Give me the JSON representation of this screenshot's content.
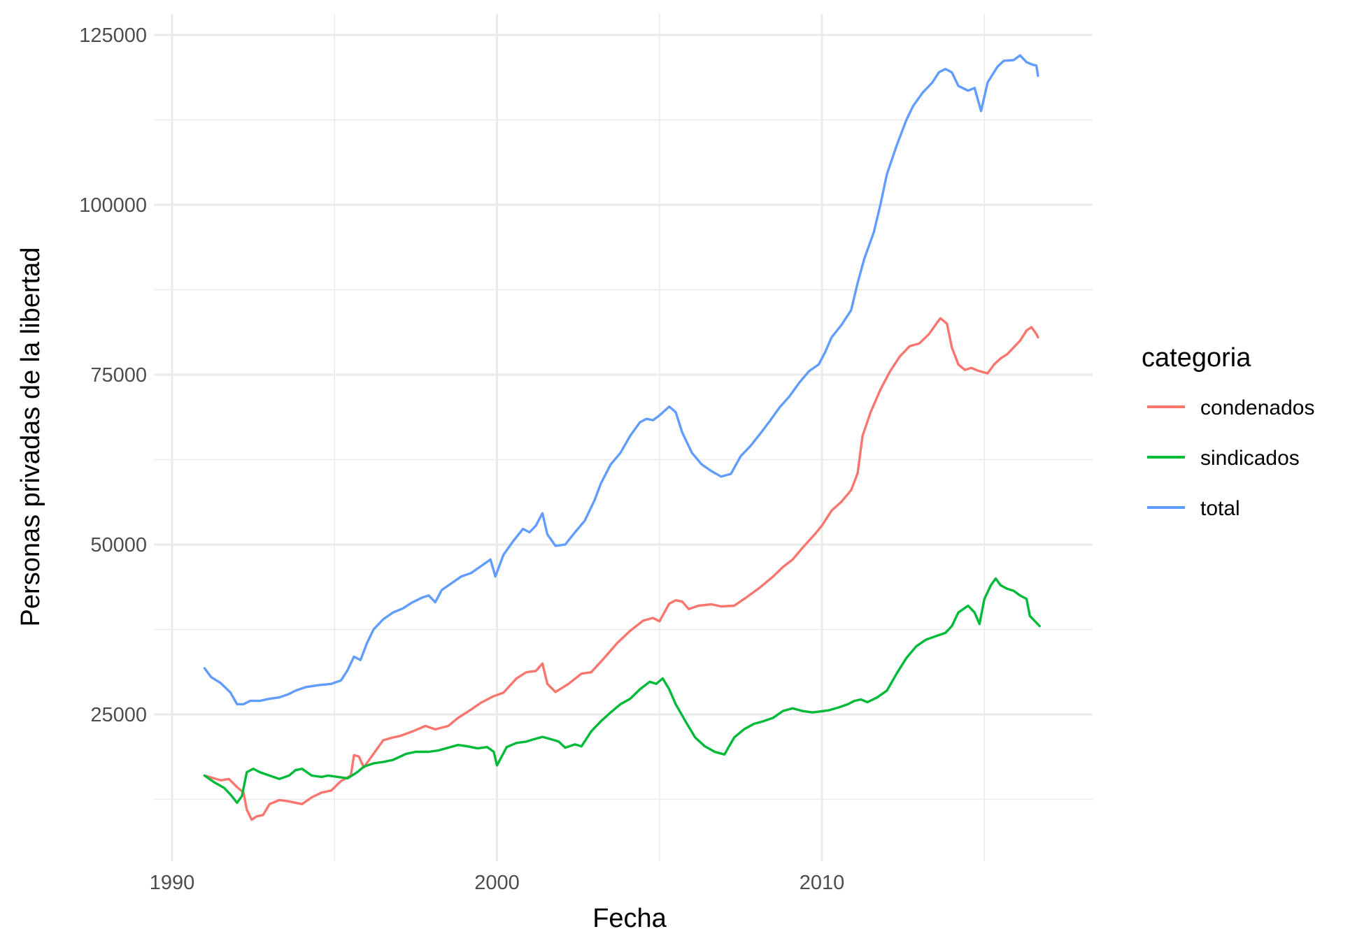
{
  "chart_data": {
    "type": "line",
    "title": "",
    "xlabel": "Fecha",
    "ylabel": "Personas privadas de la libertad",
    "xlim": [
      1990,
      2017
    ],
    "ylim": [
      0,
      125000
    ],
    "x_ticks": [
      1990,
      2000,
      2010
    ],
    "x_tick_labels": [
      "1990",
      "2000",
      "2010"
    ],
    "y_ticks": [
      25000,
      50000,
      75000,
      100000,
      125000
    ],
    "y_tick_labels": [
      "25000",
      "50000",
      "75000",
      "100000",
      "125000"
    ],
    "grid": true,
    "legend": {
      "title": "categoria",
      "position": "right"
    },
    "series": [
      {
        "name": "condenados",
        "color": "#F8766D",
        "points": [
          [
            1991.0,
            16000
          ],
          [
            1991.5,
            15300
          ],
          [
            1991.75,
            15500
          ],
          [
            1992.0,
            14300
          ],
          [
            1992.2,
            13500
          ],
          [
            1992.3,
            11000
          ],
          [
            1992.45,
            9500
          ],
          [
            1992.6,
            10000
          ],
          [
            1992.8,
            10200
          ],
          [
            1993.0,
            11800
          ],
          [
            1993.3,
            12400
          ],
          [
            1993.6,
            12200
          ],
          [
            1994.0,
            11800
          ],
          [
            1994.3,
            12800
          ],
          [
            1994.6,
            13500
          ],
          [
            1994.9,
            13800
          ],
          [
            1995.2,
            15200
          ],
          [
            1995.5,
            16000
          ],
          [
            1995.6,
            19000
          ],
          [
            1995.75,
            18800
          ],
          [
            1995.9,
            17200
          ],
          [
            1996.2,
            19200
          ],
          [
            1996.5,
            21200
          ],
          [
            1996.8,
            21600
          ],
          [
            1997.0,
            21800
          ],
          [
            1997.4,
            22500
          ],
          [
            1997.8,
            23300
          ],
          [
            1998.1,
            22800
          ],
          [
            1998.5,
            23300
          ],
          [
            1998.8,
            24500
          ],
          [
            1999.2,
            25700
          ],
          [
            1999.5,
            26700
          ],
          [
            1999.9,
            27700
          ],
          [
            2000.2,
            28200
          ],
          [
            2000.6,
            30300
          ],
          [
            2000.9,
            31200
          ],
          [
            2001.2,
            31400
          ],
          [
            2001.4,
            32500
          ],
          [
            2001.55,
            29500
          ],
          [
            2001.8,
            28300
          ],
          [
            2002.2,
            29500
          ],
          [
            2002.6,
            31000
          ],
          [
            2002.9,
            31200
          ],
          [
            2003.3,
            33300
          ],
          [
            2003.7,
            35500
          ],
          [
            2004.1,
            37300
          ],
          [
            2004.5,
            38800
          ],
          [
            2004.8,
            39200
          ],
          [
            2005.0,
            38700
          ],
          [
            2005.3,
            41300
          ],
          [
            2005.5,
            41800
          ],
          [
            2005.7,
            41600
          ],
          [
            2005.9,
            40500
          ],
          [
            2006.2,
            41000
          ],
          [
            2006.6,
            41200
          ],
          [
            2006.9,
            40900
          ],
          [
            2007.3,
            41000
          ],
          [
            2007.7,
            42300
          ],
          [
            2008.1,
            43700
          ],
          [
            2008.5,
            45300
          ],
          [
            2008.8,
            46700
          ],
          [
            2009.1,
            47800
          ],
          [
            2009.4,
            49500
          ],
          [
            2009.8,
            51600
          ],
          [
            2010.0,
            52800
          ],
          [
            2010.3,
            55000
          ],
          [
            2010.6,
            56300
          ],
          [
            2010.9,
            58000
          ],
          [
            2011.1,
            60500
          ],
          [
            2011.25,
            66000
          ],
          [
            2011.5,
            69500
          ],
          [
            2011.8,
            72800
          ],
          [
            2012.1,
            75500
          ],
          [
            2012.4,
            77700
          ],
          [
            2012.7,
            79200
          ],
          [
            2013.0,
            79600
          ],
          [
            2013.3,
            81000
          ],
          [
            2013.55,
            82700
          ],
          [
            2013.65,
            83300
          ],
          [
            2013.85,
            82500
          ],
          [
            2014.0,
            79000
          ],
          [
            2014.2,
            76500
          ],
          [
            2014.4,
            75700
          ],
          [
            2014.6,
            76000
          ],
          [
            2014.8,
            75600
          ],
          [
            2015.1,
            75200
          ],
          [
            2015.3,
            76500
          ],
          [
            2015.5,
            77400
          ],
          [
            2015.7,
            78000
          ],
          [
            2015.9,
            79000
          ],
          [
            2016.1,
            80000
          ],
          [
            2016.3,
            81500
          ],
          [
            2016.45,
            82000
          ],
          [
            2016.6,
            81000
          ],
          [
            2016.65,
            80500
          ]
        ]
      },
      {
        "name": "sindicados",
        "color": "#00BA38",
        "points": [
          [
            1991.0,
            16000
          ],
          [
            1991.3,
            15000
          ],
          [
            1991.6,
            14200
          ],
          [
            1991.8,
            13200
          ],
          [
            1992.0,
            12000
          ],
          [
            1992.15,
            13000
          ],
          [
            1992.3,
            16500
          ],
          [
            1992.5,
            17000
          ],
          [
            1992.7,
            16500
          ],
          [
            1993.0,
            16000
          ],
          [
            1993.3,
            15500
          ],
          [
            1993.6,
            16000
          ],
          [
            1993.8,
            16800
          ],
          [
            1994.0,
            17000
          ],
          [
            1994.3,
            16000
          ],
          [
            1994.6,
            15800
          ],
          [
            1994.8,
            16000
          ],
          [
            1995.1,
            15800
          ],
          [
            1995.4,
            15600
          ],
          [
            1995.7,
            16500
          ],
          [
            1995.9,
            17300
          ],
          [
            1996.2,
            17800
          ],
          [
            1996.5,
            18000
          ],
          [
            1996.8,
            18300
          ],
          [
            1997.2,
            19200
          ],
          [
            1997.5,
            19500
          ],
          [
            1997.9,
            19500
          ],
          [
            1998.2,
            19700
          ],
          [
            1998.5,
            20100
          ],
          [
            1998.8,
            20500
          ],
          [
            1999.1,
            20300
          ],
          [
            1999.4,
            20000
          ],
          [
            1999.7,
            20200
          ],
          [
            1999.9,
            19500
          ],
          [
            2000.0,
            17500
          ],
          [
            2000.3,
            20200
          ],
          [
            2000.6,
            20800
          ],
          [
            2000.9,
            21000
          ],
          [
            2001.1,
            21300
          ],
          [
            2001.4,
            21700
          ],
          [
            2001.7,
            21300
          ],
          [
            2001.9,
            21000
          ],
          [
            2002.1,
            20100
          ],
          [
            2002.4,
            20600
          ],
          [
            2002.6,
            20300
          ],
          [
            2002.9,
            22500
          ],
          [
            2003.2,
            24000
          ],
          [
            2003.5,
            25300
          ],
          [
            2003.8,
            26500
          ],
          [
            2004.1,
            27300
          ],
          [
            2004.4,
            28700
          ],
          [
            2004.7,
            29800
          ],
          [
            2004.9,
            29500
          ],
          [
            2005.1,
            30300
          ],
          [
            2005.3,
            28700
          ],
          [
            2005.5,
            26500
          ],
          [
            2005.8,
            24000
          ],
          [
            2006.1,
            21600
          ],
          [
            2006.4,
            20300
          ],
          [
            2006.7,
            19500
          ],
          [
            2007.0,
            19100
          ],
          [
            2007.3,
            21600
          ],
          [
            2007.6,
            22800
          ],
          [
            2007.9,
            23600
          ],
          [
            2008.2,
            24000
          ],
          [
            2008.5,
            24500
          ],
          [
            2008.8,
            25500
          ],
          [
            2009.1,
            25900
          ],
          [
            2009.4,
            25500
          ],
          [
            2009.7,
            25300
          ],
          [
            2009.9,
            25400
          ],
          [
            2010.2,
            25600
          ],
          [
            2010.5,
            26000
          ],
          [
            2010.8,
            26500
          ],
          [
            2011.0,
            27000
          ],
          [
            2011.2,
            27200
          ],
          [
            2011.4,
            26800
          ],
          [
            2011.7,
            27500
          ],
          [
            2012.0,
            28500
          ],
          [
            2012.3,
            31000
          ],
          [
            2012.6,
            33300
          ],
          [
            2012.9,
            35000
          ],
          [
            2013.2,
            36000
          ],
          [
            2013.5,
            36500
          ],
          [
            2013.8,
            37000
          ],
          [
            2014.0,
            38000
          ],
          [
            2014.2,
            40000
          ],
          [
            2014.5,
            41000
          ],
          [
            2014.7,
            40000
          ],
          [
            2014.85,
            38300
          ],
          [
            2015.0,
            42000
          ],
          [
            2015.2,
            44000
          ],
          [
            2015.35,
            45000
          ],
          [
            2015.5,
            44000
          ],
          [
            2015.7,
            43500
          ],
          [
            2015.9,
            43200
          ],
          [
            2016.1,
            42500
          ],
          [
            2016.3,
            42000
          ],
          [
            2016.4,
            39500
          ],
          [
            2016.6,
            38500
          ],
          [
            2016.7,
            38000
          ]
        ]
      },
      {
        "name": "total",
        "color": "#619CFF",
        "points": [
          [
            1991.0,
            31800
          ],
          [
            1991.2,
            30500
          ],
          [
            1991.5,
            29600
          ],
          [
            1991.8,
            28200
          ],
          [
            1992.0,
            26500
          ],
          [
            1992.2,
            26500
          ],
          [
            1992.4,
            27000
          ],
          [
            1992.7,
            27000
          ],
          [
            1993.0,
            27300
          ],
          [
            1993.3,
            27500
          ],
          [
            1993.6,
            28000
          ],
          [
            1993.8,
            28500
          ],
          [
            1994.1,
            29000
          ],
          [
            1994.5,
            29300
          ],
          [
            1994.9,
            29500
          ],
          [
            1995.2,
            30000
          ],
          [
            1995.4,
            31500
          ],
          [
            1995.6,
            33500
          ],
          [
            1995.8,
            33000
          ],
          [
            1996.0,
            35500
          ],
          [
            1996.2,
            37500
          ],
          [
            1996.5,
            39000
          ],
          [
            1996.8,
            40000
          ],
          [
            1997.1,
            40600
          ],
          [
            1997.4,
            41500
          ],
          [
            1997.7,
            42200
          ],
          [
            1997.9,
            42500
          ],
          [
            1998.1,
            41500
          ],
          [
            1998.3,
            43300
          ],
          [
            1998.6,
            44300
          ],
          [
            1998.9,
            45300
          ],
          [
            1999.2,
            45800
          ],
          [
            1999.5,
            46800
          ],
          [
            1999.8,
            47800
          ],
          [
            1999.95,
            45300
          ],
          [
            2000.2,
            48500
          ],
          [
            2000.5,
            50500
          ],
          [
            2000.8,
            52300
          ],
          [
            2001.0,
            51800
          ],
          [
            2001.2,
            52800
          ],
          [
            2001.4,
            54600
          ],
          [
            2001.55,
            51500
          ],
          [
            2001.8,
            49800
          ],
          [
            2002.1,
            50000
          ],
          [
            2002.4,
            51800
          ],
          [
            2002.7,
            53500
          ],
          [
            2003.0,
            56500
          ],
          [
            2003.2,
            59000
          ],
          [
            2003.5,
            61800
          ],
          [
            2003.8,
            63500
          ],
          [
            2004.1,
            66000
          ],
          [
            2004.4,
            68000
          ],
          [
            2004.6,
            68500
          ],
          [
            2004.8,
            68300
          ],
          [
            2005.0,
            69000
          ],
          [
            2005.3,
            70300
          ],
          [
            2005.5,
            69500
          ],
          [
            2005.7,
            66500
          ],
          [
            2006.0,
            63500
          ],
          [
            2006.3,
            61800
          ],
          [
            2006.6,
            60800
          ],
          [
            2006.9,
            60000
          ],
          [
            2007.2,
            60400
          ],
          [
            2007.5,
            63000
          ],
          [
            2007.8,
            64500
          ],
          [
            2008.1,
            66300
          ],
          [
            2008.4,
            68200
          ],
          [
            2008.7,
            70200
          ],
          [
            2009.0,
            71800
          ],
          [
            2009.3,
            73800
          ],
          [
            2009.6,
            75500
          ],
          [
            2009.9,
            76500
          ],
          [
            2010.1,
            78300
          ],
          [
            2010.3,
            80500
          ],
          [
            2010.6,
            82300
          ],
          [
            2010.9,
            84500
          ],
          [
            2011.1,
            88500
          ],
          [
            2011.3,
            92000
          ],
          [
            2011.6,
            96000
          ],
          [
            2011.8,
            100000
          ],
          [
            2012.0,
            104500
          ],
          [
            2012.3,
            108700
          ],
          [
            2012.6,
            112500
          ],
          [
            2012.8,
            114500
          ],
          [
            2013.1,
            116500
          ],
          [
            2013.4,
            118000
          ],
          [
            2013.6,
            119500
          ],
          [
            2013.8,
            120000
          ],
          [
            2014.0,
            119500
          ],
          [
            2014.2,
            117500
          ],
          [
            2014.5,
            116800
          ],
          [
            2014.7,
            117200
          ],
          [
            2014.9,
            113800
          ],
          [
            2015.1,
            118000
          ],
          [
            2015.4,
            120300
          ],
          [
            2015.6,
            121200
          ],
          [
            2015.9,
            121300
          ],
          [
            2016.1,
            122000
          ],
          [
            2016.3,
            121000
          ],
          [
            2016.5,
            120600
          ],
          [
            2016.6,
            120500
          ],
          [
            2016.65,
            119000
          ]
        ]
      }
    ]
  }
}
